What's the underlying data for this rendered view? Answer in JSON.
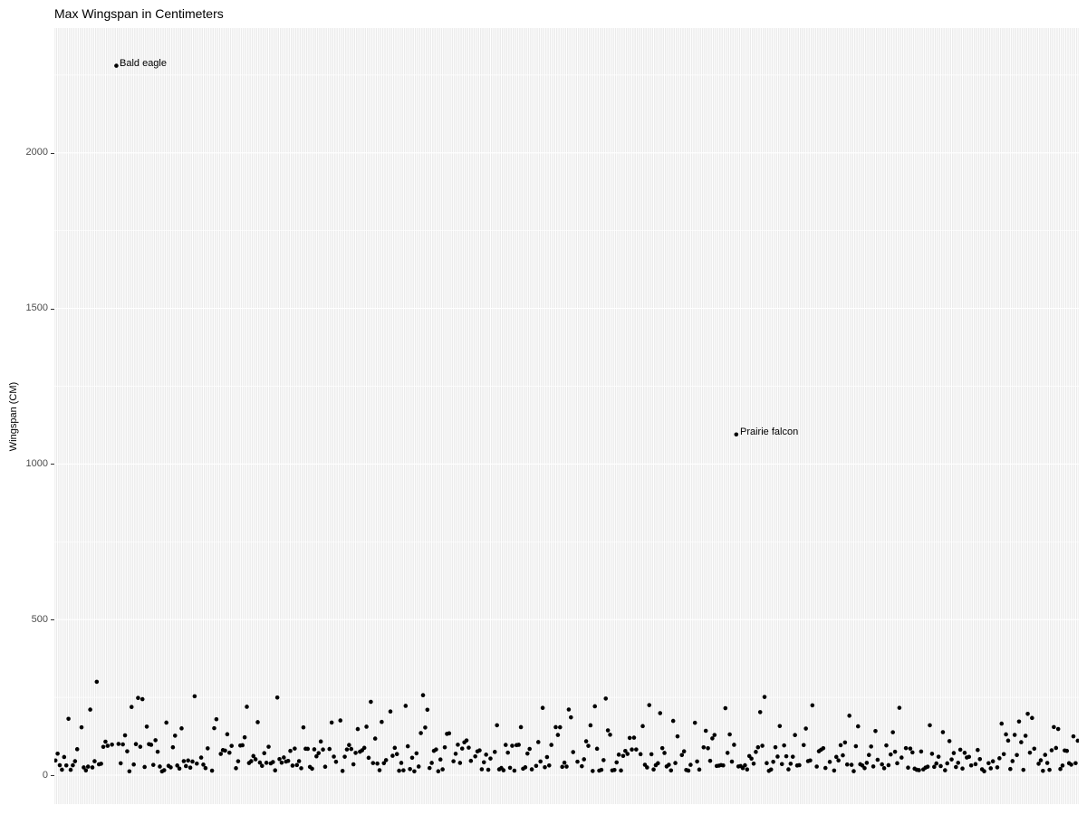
{
  "chart_data": {
    "type": "scatter",
    "title": "Max Wingspan in Centimeters",
    "xlabel": "",
    "ylabel": "Wingspan (CM)",
    "x_axis": {
      "type": "categorical",
      "categories_count": 471,
      "tick_labels_shown": false
    },
    "y_axis": {
      "ticks": [
        0,
        500,
        1000,
        1500,
        2000
      ],
      "tick_labels": [
        "0",
        "500",
        "1000",
        "1500",
        "2000"
      ],
      "minor_breaks": [
        250,
        750,
        1250,
        1750,
        2250
      ],
      "units": "cm"
    },
    "grid": {
      "panel_background": "#ebebeb",
      "gridline_color": "#ffffff",
      "vertical_gridline_per_category": true
    },
    "legend": "none",
    "annotations": [
      {
        "label": "Bald eagle",
        "category_index": 28,
        "value": 2280
      },
      {
        "label": "Prairie falcon",
        "category_index": 313,
        "value": 1095
      }
    ],
    "unlabeled_outliers": [
      {
        "category_index": 19,
        "value": 300
      }
    ],
    "background_points": {
      "description": "~440 unlabeled bird-species points; max wingspan mostly 12-260 cm hugging the x-axis",
      "count_categories": 471,
      "presence_probability": 0.93,
      "seed": 7,
      "value_bands": [
        {
          "min": 12,
          "max": 48,
          "weight": 0.44
        },
        {
          "min": 48,
          "max": 100,
          "weight": 0.34
        },
        {
          "min": 100,
          "max": 165,
          "weight": 0.15
        },
        {
          "min": 165,
          "max": 230,
          "weight": 0.055
        },
        {
          "min": 230,
          "max": 258,
          "weight": 0.015
        }
      ]
    },
    "point_style": {
      "color": "#000000",
      "radius_px": 2.3
    },
    "colors": {
      "title_text": "#000000",
      "axis_text": "#4d4d4d",
      "axis_tick": "#333333",
      "panel_bg": "#ebebeb",
      "grid": "#ffffff",
      "points": "#000000"
    }
  }
}
